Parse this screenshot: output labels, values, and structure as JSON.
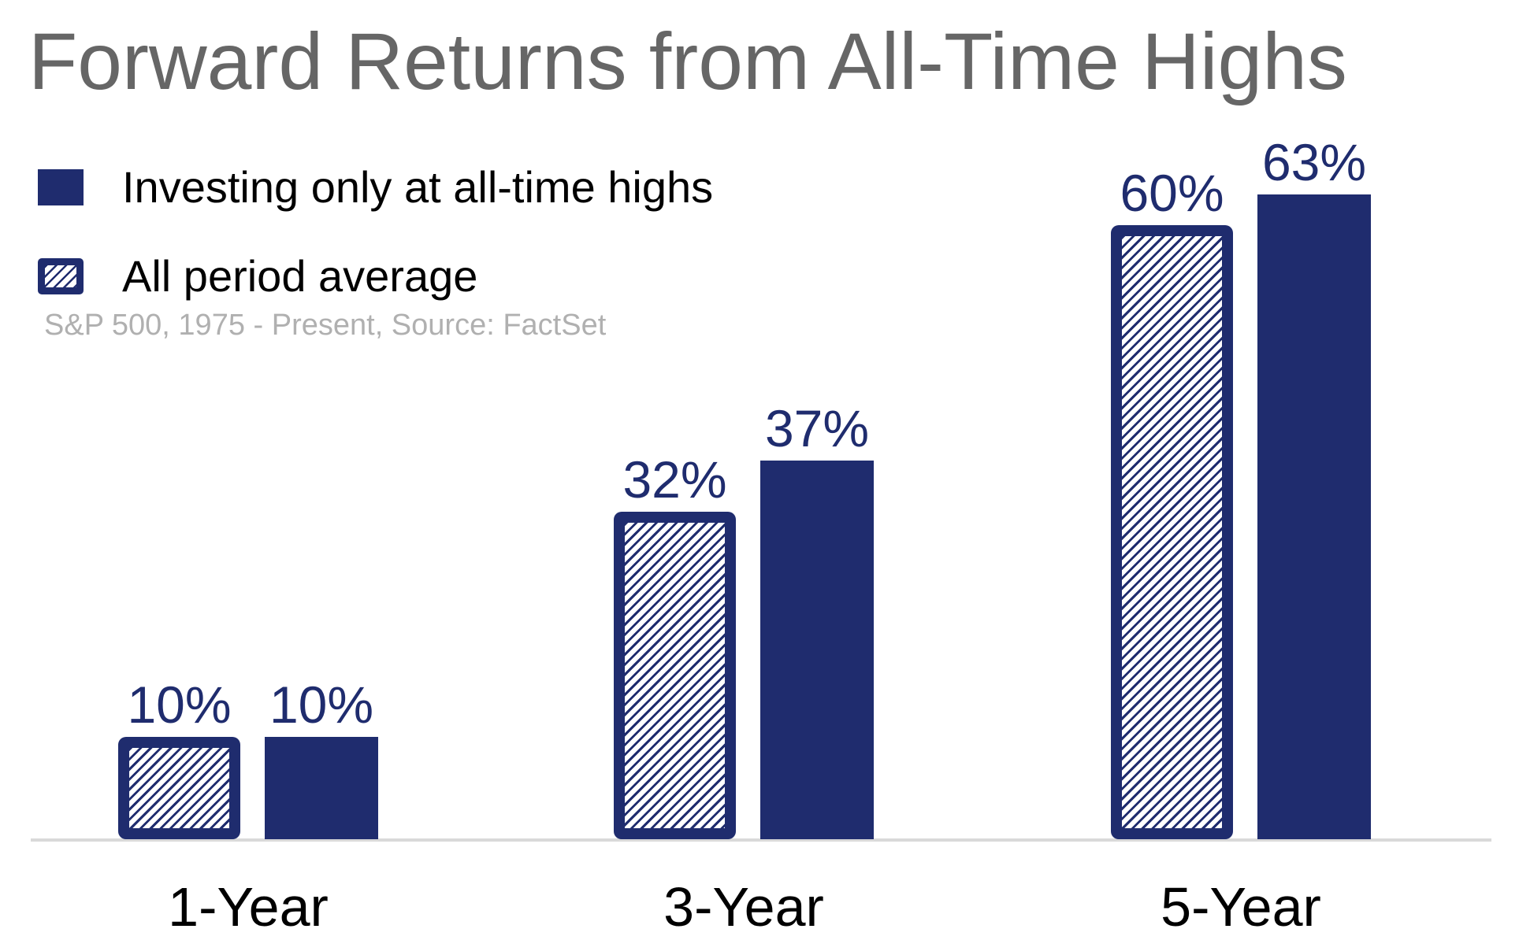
{
  "title": "Forward Returns from All-Time Highs",
  "subtitle": "S&P 500, 1975 - Present, Source: FactSet",
  "legend": [
    {
      "label": "Investing only at all-time highs",
      "swatch": "solid-navy-square"
    },
    {
      "label": "All period average",
      "swatch": "hatched-navy-square"
    }
  ],
  "colors": {
    "navy": "#1F2C6E",
    "title_gray": "#666666",
    "subtitle_gray": "#B0B0B0",
    "axis_gray": "#D9D9D9",
    "category_black": "#000000",
    "background": "#FFFFFF"
  },
  "chart_data": {
    "type": "bar",
    "categories": [
      "1-Year",
      "3-Year",
      "5-Year"
    ],
    "series": [
      {
        "name": "All period average",
        "style": "hatched",
        "values": [
          10,
          32,
          60
        ],
        "labels": [
          "10%",
          "32%",
          "60%"
        ]
      },
      {
        "name": "Investing only at all-time highs",
        "style": "solid",
        "values": [
          10,
          37,
          63
        ],
        "labels": [
          "10%",
          "37%",
          "63%"
        ]
      }
    ],
    "value_suffix": "%",
    "ylim": [
      0,
      70
    ],
    "grid": false,
    "y_axis_shown": false,
    "legend_position": "top-left",
    "bar_order_within_group": [
      "All period average (hatched, left)",
      "Investing only at all-time highs (solid, right)"
    ],
    "note": "Value labels shown above each bar; single light-gray baseline only"
  }
}
